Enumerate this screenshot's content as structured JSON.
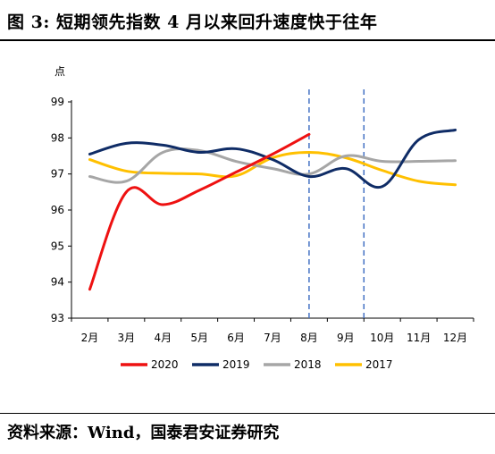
{
  "header": {
    "title": "图 3:  短期领先指数 4 月以来回升速度快于往年"
  },
  "footer": {
    "source": "资料来源：Wind，国泰君安证券研究"
  },
  "chart_data": {
    "type": "line",
    "ylabel": "点",
    "ylim": [
      93,
      99
    ],
    "yticks": [
      "93",
      "94",
      "95",
      "96",
      "97",
      "98",
      "99"
    ],
    "categories": [
      "2月",
      "3月",
      "4月",
      "5月",
      "6月",
      "7月",
      "8月",
      "9月",
      "10月",
      "11月",
      "12月"
    ],
    "vlines": [
      6.5,
      8.0
    ],
    "legend_position": "bottom",
    "series": [
      {
        "name": "2020",
        "color": "#ee1111",
        "values": [
          93.8,
          96.5,
          96.15,
          96.55,
          97.05,
          97.55,
          98.1,
          null,
          null,
          null,
          null
        ]
      },
      {
        "name": "2019",
        "color": "#0f2c66",
        "values": [
          97.55,
          97.85,
          97.8,
          97.6,
          97.7,
          97.4,
          96.93,
          97.15,
          96.65,
          97.95,
          98.22
        ]
      },
      {
        "name": "2018",
        "color": "#a6a6a6",
        "values": [
          96.93,
          96.8,
          97.6,
          97.65,
          97.35,
          97.15,
          97.0,
          97.5,
          97.35,
          97.35,
          97.37
        ]
      },
      {
        "name": "2017",
        "color": "#ffc000",
        "values": [
          97.4,
          97.08,
          97.02,
          97.0,
          96.95,
          97.45,
          97.6,
          97.45,
          97.1,
          96.8,
          96.7
        ]
      }
    ]
  }
}
